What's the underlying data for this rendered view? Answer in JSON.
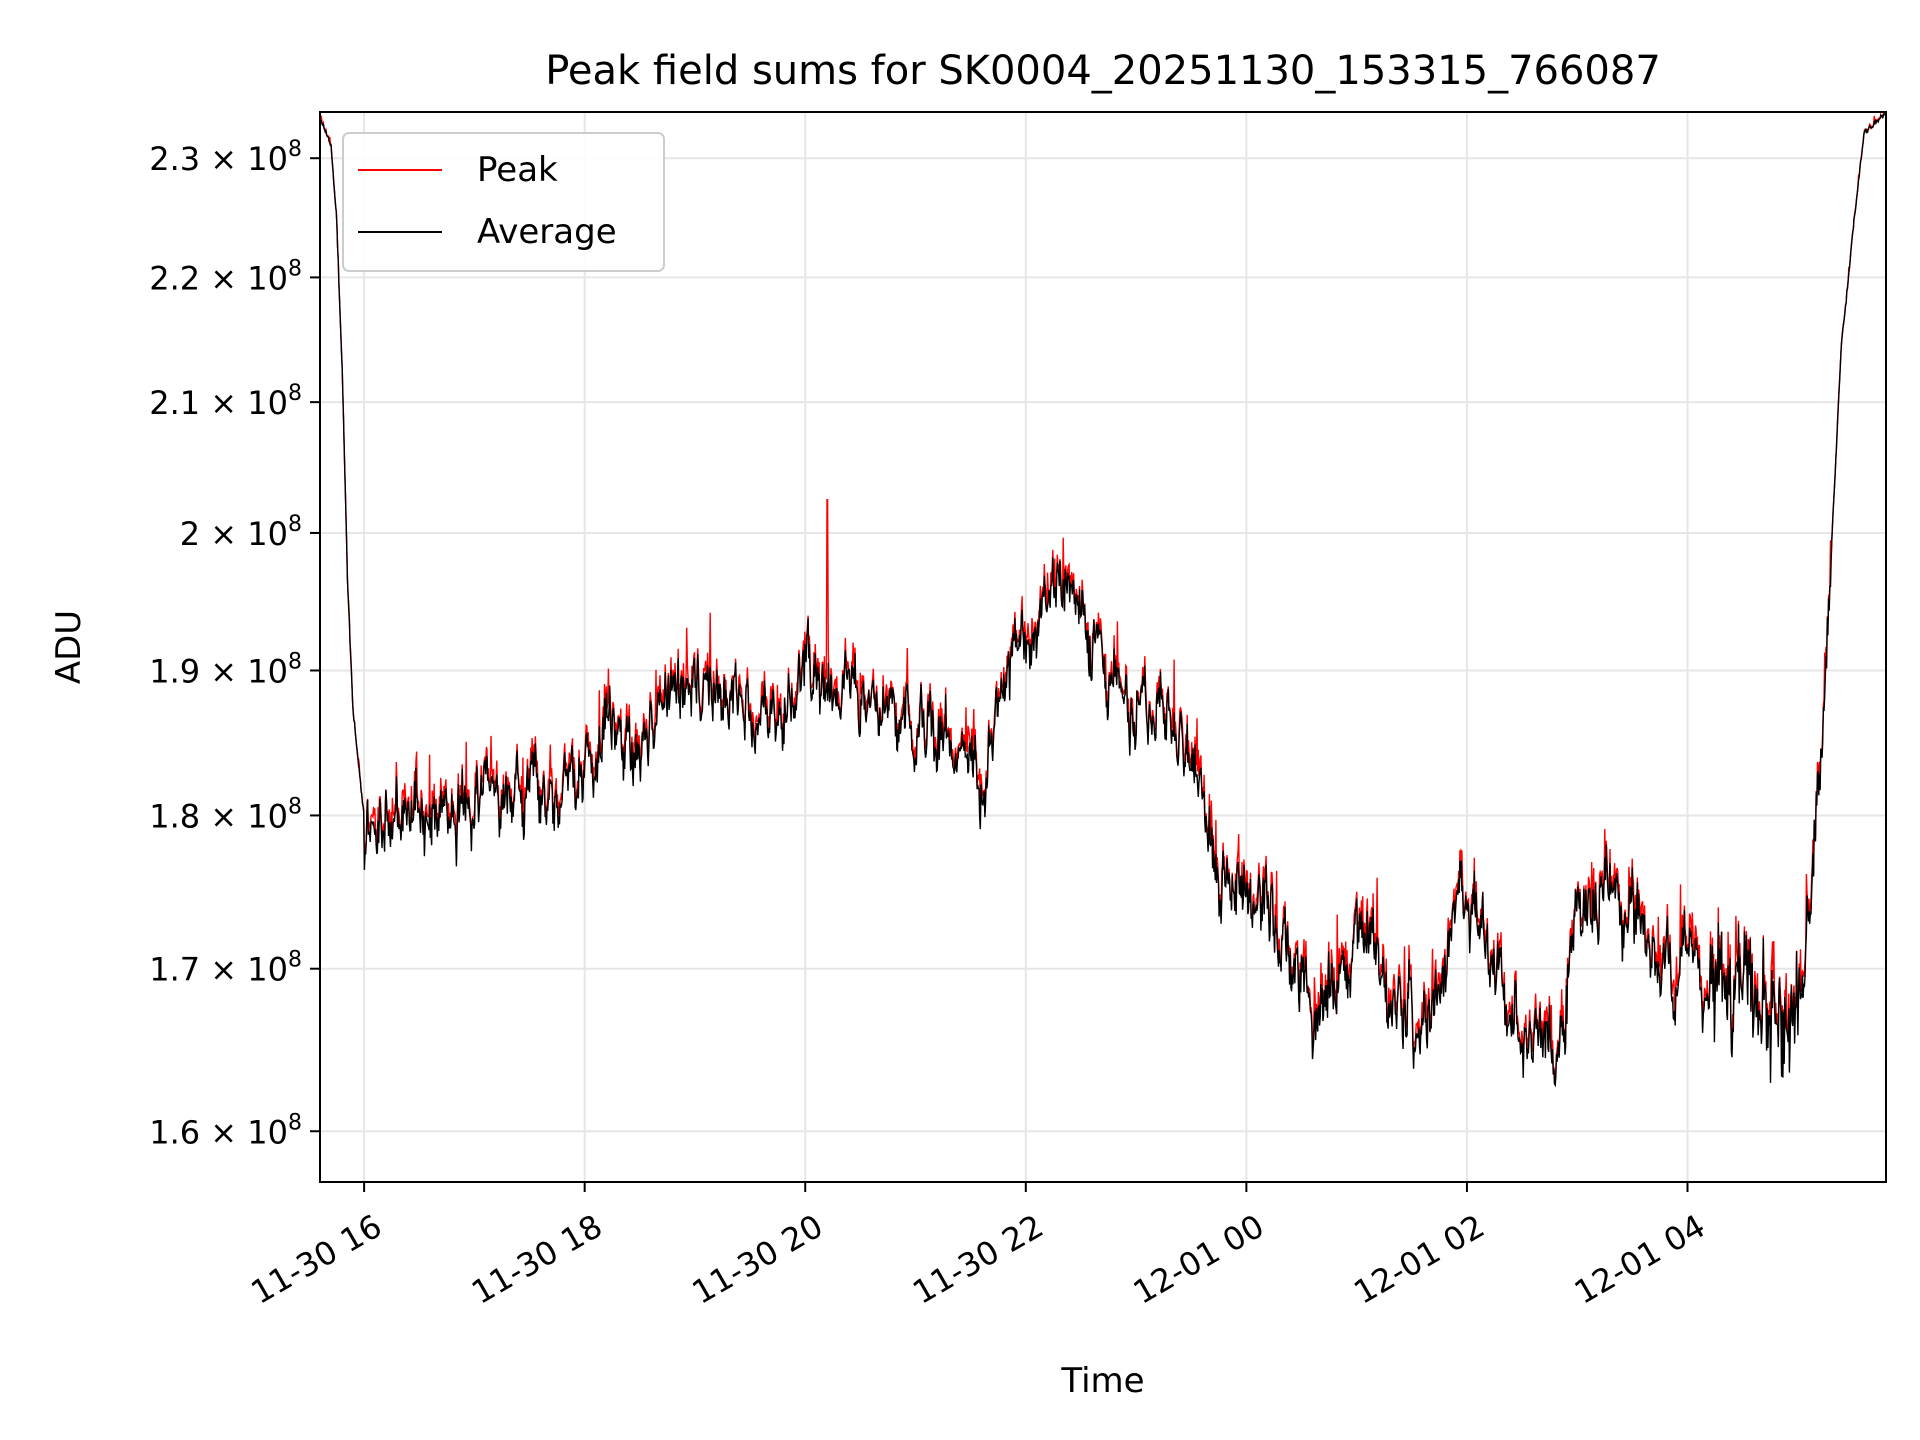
{
  "chart_data": {
    "type": "line",
    "title": "Peak field sums for SK0004_20251130_153315_766087",
    "xlabel": "Time",
    "ylabel": "ADU",
    "y_scale": "log",
    "ylim": [
      157000000,
      234000000
    ],
    "xlim_hours": [
      -0.4,
      13.8
    ],
    "grid": true,
    "legend_position": "top-left",
    "x_ticks": [
      {
        "label": "11-30 16",
        "hours": 0
      },
      {
        "label": "11-30 18",
        "hours": 2
      },
      {
        "label": "11-30 20",
        "hours": 4
      },
      {
        "label": "11-30 22",
        "hours": 6
      },
      {
        "label": "12-01 00",
        "hours": 8
      },
      {
        "label": "12-01 02",
        "hours": 10
      },
      {
        "label": "12-01 04",
        "hours": 12
      }
    ],
    "y_ticks": [
      {
        "mantissa": "1.6",
        "value": 160000000
      },
      {
        "mantissa": "1.7",
        "value": 170000000
      },
      {
        "mantissa": "1.8",
        "value": 180000000
      },
      {
        "mantissa": "1.9",
        "value": 190000000
      },
      {
        "mantissa": "2",
        "value": 200000000
      },
      {
        "mantissa": "2.1",
        "value": 210000000
      },
      {
        "mantissa": "2.2",
        "value": 220000000
      },
      {
        "mantissa": "2.3",
        "value": 230000000
      }
    ],
    "tick_times_sign": "×",
    "tick_base": "10",
    "tick_exponent": "8",
    "anchor_hours": [
      -0.4,
      -0.3,
      -0.25,
      -0.2,
      -0.15,
      -0.1,
      0.0,
      0.1,
      0.2,
      0.4,
      0.6,
      0.8,
      1.0,
      1.2,
      1.4,
      1.6,
      1.7,
      1.8,
      2.0,
      2.3,
      2.6,
      2.8,
      3.0,
      3.2,
      3.4,
      3.6,
      3.8,
      4.0,
      4.2,
      4.4,
      4.6,
      4.8,
      5.0,
      5.2,
      5.4,
      5.6,
      5.8,
      6.0,
      6.2,
      6.4,
      6.6,
      6.8,
      7.0,
      7.2,
      7.4,
      7.6,
      7.8,
      8.0,
      8.2,
      8.4,
      8.6,
      8.8,
      9.0,
      9.2,
      9.4,
      9.6,
      9.8,
      9.9,
      10.0,
      10.2,
      10.4,
      10.6,
      10.8,
      11.0,
      11.2,
      11.4,
      11.6,
      11.8,
      12.0,
      12.2,
      12.4,
      12.6,
      12.7,
      12.8,
      12.9,
      13.0,
      13.1,
      13.2,
      13.3,
      13.4,
      13.6,
      13.8
    ],
    "anchor_adu": [
      233500000,
      231000000,
      225000000,
      213000000,
      196000000,
      187000000,
      180500000,
      179000000,
      180000000,
      180000000,
      179500000,
      180500000,
      182000000,
      181500000,
      182500000,
      183500000,
      180000000,
      181500000,
      183500000,
      185500000,
      186500000,
      188500000,
      189000000,
      187500000,
      187500000,
      187000000,
      186500000,
      190500000,
      190000000,
      188500000,
      188000000,
      187000000,
      186000000,
      185000000,
      185500000,
      180500000,
      188500000,
      192000000,
      196000000,
      195000000,
      193000000,
      190000000,
      187500000,
      187000000,
      186500000,
      181000000,
      175500000,
      174000000,
      173000000,
      171000000,
      167000000,
      168500000,
      172000000,
      171000000,
      166000000,
      167000000,
      170500000,
      174500000,
      174000000,
      172000000,
      167000000,
      166000000,
      164500000,
      174000000,
      175500000,
      173000000,
      172500000,
      169000000,
      171000000,
      168000000,
      168000000,
      169000000,
      168500000,
      168500000,
      168000000,
      167500000,
      172500000,
      183000000,
      198000000,
      215000000,
      232000000,
      234000000
    ],
    "series": [
      {
        "name": "Peak",
        "color": "#ff0000"
      },
      {
        "name": "Average",
        "color": "#000000"
      }
    ]
  }
}
